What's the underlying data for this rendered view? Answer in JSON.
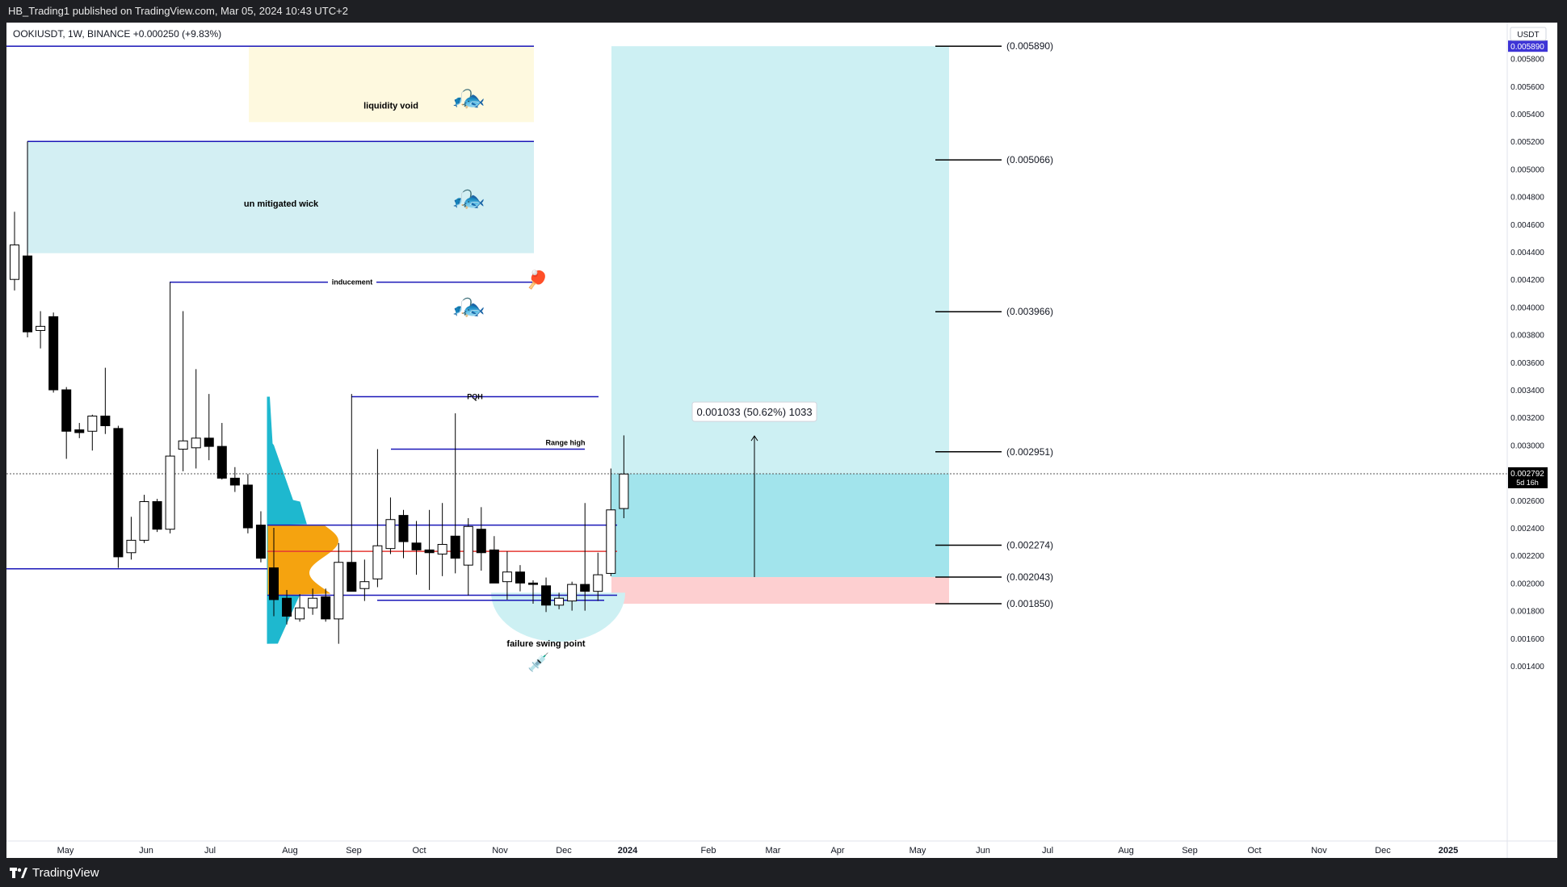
{
  "header": {
    "published_text": "HB_Trading1 published on TradingView.com, Mar 05, 2024 10:43 UTC+2"
  },
  "footer": {
    "brand": "TradingView"
  },
  "chart_data": {
    "type": "candlestick",
    "symbol_line": "OOKIUSDT, 1W, BINANCE  +0.000250 (+9.83%)",
    "currency": "USDT",
    "current_price": "0.002792",
    "countdown": "5d 16h",
    "top_price_badge": "0.005890",
    "ylim": [
      0.0013,
      0.0061
    ],
    "y_ticks": [
      "0.001400",
      "0.001600",
      "0.001800",
      "0.002000",
      "0.002200",
      "0.002400",
      "0.002600",
      "0.002800",
      "0.003000",
      "0.003200",
      "0.003400",
      "0.003600",
      "0.003800",
      "0.004000",
      "0.004200",
      "0.004400",
      "0.004600",
      "0.004800",
      "0.005000",
      "0.005200",
      "0.005400",
      "0.005600",
      "0.005800"
    ],
    "x_ticks": [
      "May",
      "Jun",
      "Jul",
      "Aug",
      "Sep",
      "Oct",
      "Nov",
      "Dec",
      "2024",
      "Feb",
      "Mar",
      "Apr",
      "May",
      "Jun",
      "Jul",
      "Aug",
      "Sep",
      "Oct",
      "Nov",
      "Dec",
      "2025"
    ],
    "candles": [
      {
        "o": 0.0042,
        "h": 0.00469,
        "l": 0.00412,
        "c": 0.00445
      },
      {
        "o": 0.00437,
        "h": 0.0052,
        "l": 0.00378,
        "c": 0.00382
      },
      {
        "o": 0.00383,
        "h": 0.00397,
        "l": 0.0037,
        "c": 0.00386
      },
      {
        "o": 0.00393,
        "h": 0.00396,
        "l": 0.00338,
        "c": 0.0034
      },
      {
        "o": 0.0034,
        "h": 0.00342,
        "l": 0.0029,
        "c": 0.0031
      },
      {
        "o": 0.00311,
        "h": 0.00316,
        "l": 0.00305,
        "c": 0.00309
      },
      {
        "o": 0.0031,
        "h": 0.00322,
        "l": 0.00296,
        "c": 0.00321
      },
      {
        "o": 0.00321,
        "h": 0.00356,
        "l": 0.00308,
        "c": 0.00314
      },
      {
        "o": 0.00312,
        "h": 0.00314,
        "l": 0.00211,
        "c": 0.00219
      },
      {
        "o": 0.00222,
        "h": 0.00248,
        "l": 0.00217,
        "c": 0.00231
      },
      {
        "o": 0.00231,
        "h": 0.00264,
        "l": 0.00229,
        "c": 0.00259
      },
      {
        "o": 0.00259,
        "h": 0.00261,
        "l": 0.00237,
        "c": 0.00239
      },
      {
        "o": 0.00239,
        "h": 0.00418,
        "l": 0.00236,
        "c": 0.00292
      },
      {
        "o": 0.00297,
        "h": 0.00397,
        "l": 0.00281,
        "c": 0.00303
      },
      {
        "o": 0.00298,
        "h": 0.00355,
        "l": 0.00283,
        "c": 0.00305
      },
      {
        "o": 0.00305,
        "h": 0.00337,
        "l": 0.00289,
        "c": 0.00299
      },
      {
        "o": 0.00299,
        "h": 0.00316,
        "l": 0.00275,
        "c": 0.00276
      },
      {
        "o": 0.00276,
        "h": 0.00284,
        "l": 0.00266,
        "c": 0.00271
      },
      {
        "o": 0.00271,
        "h": 0.00279,
        "l": 0.00236,
        "c": 0.0024
      },
      {
        "o": 0.00242,
        "h": 0.00252,
        "l": 0.00215,
        "c": 0.00218
      },
      {
        "o": 0.00211,
        "h": 0.0024,
        "l": 0.00176,
        "c": 0.00188
      },
      {
        "o": 0.00189,
        "h": 0.00195,
        "l": 0.0017,
        "c": 0.00176
      },
      {
        "o": 0.00174,
        "h": 0.00192,
        "l": 0.00172,
        "c": 0.00182
      },
      {
        "o": 0.00182,
        "h": 0.00196,
        "l": 0.00177,
        "c": 0.00189
      },
      {
        "o": 0.0019,
        "h": 0.00196,
        "l": 0.00172,
        "c": 0.00174
      },
      {
        "o": 0.00174,
        "h": 0.00229,
        "l": 0.00156,
        "c": 0.00215
      },
      {
        "o": 0.00215,
        "h": 0.00337,
        "l": 0.00196,
        "c": 0.00194
      },
      {
        "o": 0.00196,
        "h": 0.00217,
        "l": 0.00187,
        "c": 0.00201
      },
      {
        "o": 0.00203,
        "h": 0.00297,
        "l": 0.00197,
        "c": 0.00227
      },
      {
        "o": 0.00225,
        "h": 0.00262,
        "l": 0.00221,
        "c": 0.00246
      },
      {
        "o": 0.00249,
        "h": 0.00253,
        "l": 0.00218,
        "c": 0.0023
      },
      {
        "o": 0.00229,
        "h": 0.00245,
        "l": 0.00206,
        "c": 0.00224
      },
      {
        "o": 0.00224,
        "h": 0.00253,
        "l": 0.00195,
        "c": 0.00222
      },
      {
        "o": 0.00221,
        "h": 0.00258,
        "l": 0.00205,
        "c": 0.00228
      },
      {
        "o": 0.00234,
        "h": 0.00323,
        "l": 0.00207,
        "c": 0.00218
      },
      {
        "o": 0.00213,
        "h": 0.00247,
        "l": 0.00191,
        "c": 0.00241
      },
      {
        "o": 0.00239,
        "h": 0.00255,
        "l": 0.00209,
        "c": 0.00222
      },
      {
        "o": 0.00224,
        "h": 0.00234,
        "l": 0.00202,
        "c": 0.002
      },
      {
        "o": 0.00201,
        "h": 0.00223,
        "l": 0.00188,
        "c": 0.00208
      },
      {
        "o": 0.00208,
        "h": 0.00213,
        "l": 0.00194,
        "c": 0.002
      },
      {
        "o": 0.002,
        "h": 0.00202,
        "l": 0.00185,
        "c": 0.00199
      },
      {
        "o": 0.00198,
        "h": 0.00204,
        "l": 0.00179,
        "c": 0.00184
      },
      {
        "o": 0.00184,
        "h": 0.00193,
        "l": 0.00181,
        "c": 0.00189
      },
      {
        "o": 0.00187,
        "h": 0.00201,
        "l": 0.0018,
        "c": 0.00199
      },
      {
        "o": 0.00199,
        "h": 0.00258,
        "l": 0.0018,
        "c": 0.00194
      },
      {
        "o": 0.00194,
        "h": 0.00222,
        "l": 0.00187,
        "c": 0.00206
      },
      {
        "o": 0.00207,
        "h": 0.00283,
        "l": 0.00205,
        "c": 0.00253
      },
      {
        "o": 0.00254,
        "h": 0.00307,
        "l": 0.00247,
        "c": 0.00279
      }
    ],
    "fib_levels": [
      "(0.005890)",
      "(0.005066)",
      "(0.003966)",
      "(0.002951)",
      "(0.002274)",
      "(0.002043)",
      "(0.001850)"
    ],
    "fib_values": [
      0.00589,
      0.005066,
      0.003966,
      0.002951,
      0.002274,
      0.002043,
      0.00185
    ],
    "measure_label": "0.001033 (50.62%) 1033",
    "annotations": {
      "liquidity_void": "liquidity void",
      "unmitigated_wick": "un mitigated wick",
      "inducement": "inducement",
      "pqh": "PQH",
      "range_high": "Range high",
      "failure_swing": "failure swing point"
    },
    "levels": {
      "inducement": 0.00418,
      "pqh": 0.00335,
      "range_high": 0.00297,
      "lower_line": 0.002103,
      "vah": 0.00242,
      "poc": 0.00223,
      "val": 0.001912,
      "range_low": 0.001875
    },
    "colors": {
      "bull_body": "#ffffff",
      "bear_body": "#000000",
      "level_line": "#1a17b8",
      "poc_line": "#e53935",
      "target_zone": "#cdf0f3",
      "target_zone_dark": "#a2e4ec",
      "stop_zone": "#fdcfd0",
      "void_zone": "#fef9df",
      "wick_zone": "#d3eff3",
      "vp_value_area": "#f5a30f",
      "vp_outside": "#1eb8cf"
    }
  }
}
